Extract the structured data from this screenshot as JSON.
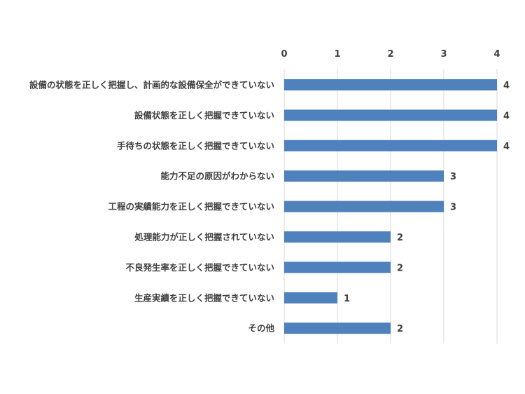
{
  "chart_data": {
    "type": "bar",
    "orientation": "horizontal",
    "categories": [
      "設備の状態を正しく把握し、計画的な設備保全ができていない",
      "設備状態を正しく把握できていない",
      "手待ちの状態を正しく把握できていない",
      "能力不足の原因がわからない",
      "工程の実績能力を正しく把握できていない",
      "処理能力が正しく把握されていない",
      "不良発生率を正しく把握できていない",
      "生産実績を正しく把握できていない",
      "その他"
    ],
    "values": [
      4,
      4,
      4,
      3,
      3,
      2,
      2,
      1,
      2
    ],
    "xlim": [
      0,
      4
    ],
    "ticks": [
      "0",
      "1",
      "2",
      "3",
      "4"
    ],
    "x_axis_position": "top",
    "grid": true,
    "legend": "none",
    "bar_color": "#4f81bd",
    "data_labels": true
  }
}
